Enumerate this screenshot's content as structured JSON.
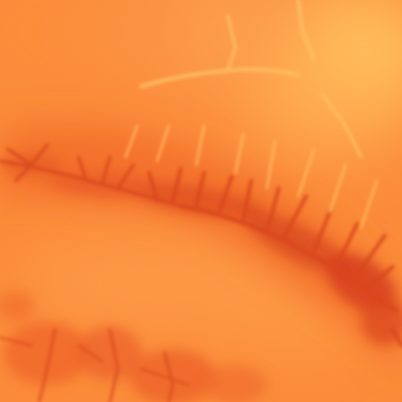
{
  "map": {
    "kind": "elevation-heatmap",
    "palette": {
      "lowland": "#fb8b3a",
      "plain": "#fc9640",
      "upland": "#ffd46a",
      "ridge": "#ffbe5c",
      "valley_mid": "#f06a2a",
      "valley_deep": "#d6401d"
    }
  }
}
